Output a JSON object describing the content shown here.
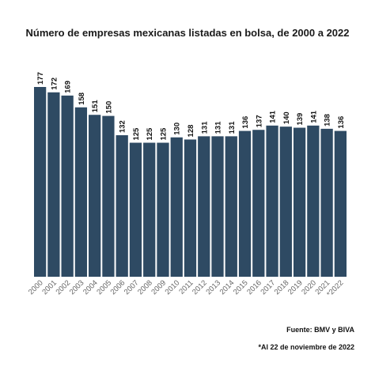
{
  "title": "Número de empresas mexicanas listadas en bolsa, de 2000 a 2022",
  "source": "Fuente: BMV y BIVA",
  "footnote": "*Al 22 de noviembre de 2022",
  "colors": {
    "bar": "#2e4a63",
    "label": "#111111",
    "tick": "#666666"
  },
  "chart_data": {
    "type": "bar",
    "categories": [
      "2000",
      "2001",
      "2002",
      "2003",
      "2004",
      "2005",
      "2006",
      "2007",
      "2008",
      "2009",
      "2010",
      "2011",
      "2012",
      "2013",
      "2014",
      "2015",
      "2016",
      "2017",
      "2018",
      "2019",
      "2020",
      "2021",
      "*2022"
    ],
    "values": [
      177,
      172,
      169,
      158,
      151,
      150,
      132,
      125,
      125,
      125,
      130,
      128,
      131,
      131,
      131,
      136,
      137,
      141,
      140,
      139,
      141,
      138,
      136
    ],
    "title": "Número de empresas mexicanas listadas en bolsa, de 2000 a 2022",
    "xlabel": "",
    "ylabel": "",
    "ylim": [
      0,
      177
    ],
    "grid": false,
    "data_labels": true
  }
}
